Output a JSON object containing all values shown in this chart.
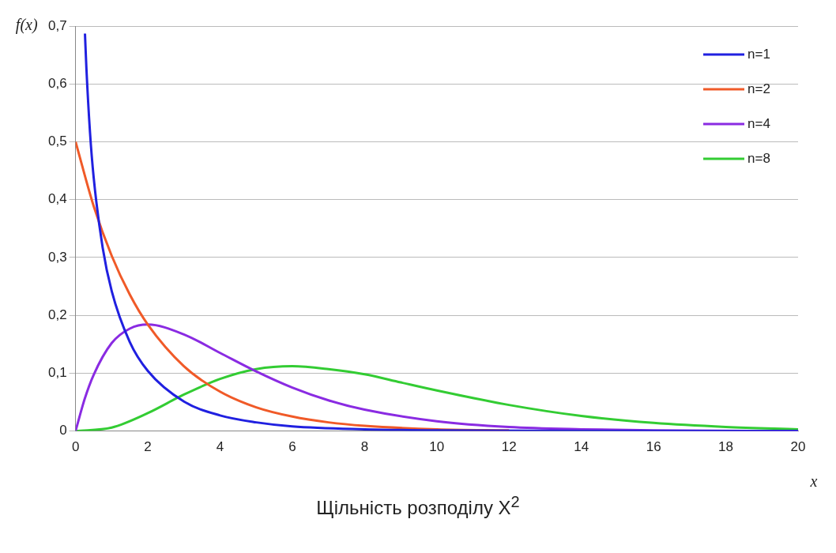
{
  "chart_data": {
    "type": "line",
    "title": "Щільність розподілу X$^{2}$",
    "xlabel": "x",
    "ylabel": "f(x)",
    "xlim": [
      0,
      20
    ],
    "xticks": [
      0,
      2,
      4,
      6,
      8,
      10,
      12,
      14,
      16,
      18,
      20
    ],
    "ylim": [
      0,
      0.7
    ],
    "yticks": [
      0,
      {
        "value": 0.1,
        "label": "0,1"
      },
      {
        "value": 0.2,
        "label": "0,2"
      },
      {
        "value": 0.3,
        "label": "0,3"
      },
      {
        "value": 0.4,
        "label": "0,4"
      },
      {
        "value": 0.5,
        "label": "0,5"
      },
      {
        "value": 0.6,
        "label": "0,6"
      },
      {
        "value": 0.7,
        "label": "0,7"
      }
    ],
    "grid": "y",
    "legend": "top right",
    "marker": "none",
    "line_style": "solid",
    "series": [
      {
        "name": "n=1",
        "color": "#2020e0",
        "x": [
          0.26,
          0.3,
          0.4,
          0.5,
          0.75,
          1,
          1.5,
          2,
          3,
          4,
          5,
          6,
          8,
          10,
          14,
          20
        ],
        "values": [
          0.687,
          0.627,
          0.516,
          0.439,
          0.317,
          0.242,
          0.154,
          0.104,
          0.051,
          0.027,
          0.015,
          0.008,
          0.003,
          0.001,
          0,
          0
        ]
      },
      {
        "name": "n=2",
        "color": "#f05a28",
        "x": [
          0,
          0.5,
          1,
          1.5,
          2,
          3,
          4,
          5,
          6,
          7,
          8,
          10,
          12
        ],
        "values": [
          0.5,
          0.389,
          0.303,
          0.236,
          0.184,
          0.112,
          0.068,
          0.041,
          0.025,
          0.015,
          0.009,
          0.003,
          0.001
        ]
      },
      {
        "name": "n=4",
        "color": "#8a2be2",
        "x": [
          0,
          0.25,
          0.5,
          1,
          1.5,
          2,
          3,
          4,
          5,
          6,
          7,
          8,
          10,
          12,
          14,
          16,
          20
        ],
        "values": [
          0,
          0.055,
          0.097,
          0.152,
          0.177,
          0.184,
          0.167,
          0.135,
          0.103,
          0.075,
          0.053,
          0.037,
          0.017,
          0.007,
          0.003,
          0.001,
          0
        ]
      },
      {
        "name": "n=8",
        "color": "#33cc33",
        "x": [
          0,
          1,
          2,
          3,
          4,
          5,
          6,
          7,
          8,
          9,
          10,
          12,
          14,
          16,
          18,
          20
        ],
        "values": [
          0,
          0.006,
          0.031,
          0.063,
          0.09,
          0.107,
          0.112,
          0.107,
          0.098,
          0.084,
          0.07,
          0.045,
          0.026,
          0.014,
          0.007,
          0.003
        ]
      }
    ]
  }
}
